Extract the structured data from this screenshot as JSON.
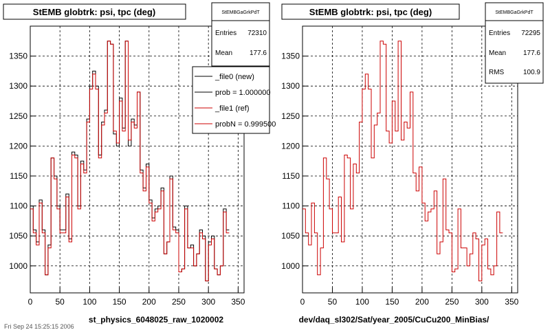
{
  "colors": {
    "data": "#000000",
    "ref": "#cc0000",
    "background": "#ffffff",
    "grid": "#000000"
  },
  "footer_text": "Fri Sep 24 15:25:15 2006",
  "chart_data": [
    {
      "type": "step-histogram",
      "title": "StEMB globtrk: psi, tpc (deg)",
      "xlabel": "st_physics_6048025_raw_1020002",
      "ylabel": "",
      "xlim": [
        0,
        360
      ],
      "ylim": [
        955,
        1400
      ],
      "x_ticks": [
        0,
        50,
        100,
        150,
        200,
        250,
        300,
        350
      ],
      "y_ticks": [
        1000,
        1050,
        1100,
        1150,
        1200,
        1250,
        1300,
        1350
      ],
      "grid": true,
      "bin_width": 5,
      "stats_box": {
        "header": "StEMBGaGrkPdT",
        "rows": [
          {
            "label": "Entries",
            "value": "72310"
          },
          {
            "label": "Mean",
            "value": "177.6"
          }
        ]
      },
      "legend": {
        "position": "top-right",
        "entries": [
          {
            "label": "_file0 (new)",
            "color": "#000000"
          },
          {
            "label": "prob = 1.000000",
            "color": "#000000"
          },
          {
            "label": "_file1 (ref)",
            "color": "#cc0000"
          },
          {
            "label": "probN = 0.999500",
            "color": "#cc0000"
          }
        ]
      },
      "series": [
        {
          "name": "_file0 (new)",
          "color": "#000000",
          "values": [
            1100,
            1060,
            1040,
            1110,
            1060,
            985,
            1035,
            1180,
            1150,
            1100,
            1060,
            1060,
            1120,
            1045,
            1190,
            1185,
            1100,
            1175,
            1160,
            1245,
            1300,
            1325,
            1300,
            1185,
            1240,
            1260,
            1375,
            1370,
            1220,
            1200,
            1280,
            1230,
            1375,
            1200,
            1245,
            1235,
            1290,
            1160,
            1130,
            1170,
            1110,
            1080,
            1095,
            1100,
            1130,
            1020,
            1040,
            1150,
            1065,
            1060,
            990,
            995,
            1100,
            1030,
            1035,
            1000,
            1020,
            1060,
            1050,
            975,
            1040,
            1050,
            995,
            985,
            1000,
            1095,
            1060
          ]
        },
        {
          "name": "_file1 (ref)",
          "color": "#cc0000",
          "values": [
            1095,
            1055,
            1035,
            1105,
            1055,
            985,
            1030,
            1180,
            1145,
            1095,
            1055,
            1055,
            1115,
            1040,
            1185,
            1180,
            1095,
            1170,
            1155,
            1240,
            1295,
            1320,
            1295,
            1180,
            1235,
            1255,
            1375,
            1370,
            1225,
            1205,
            1275,
            1225,
            1375,
            1210,
            1240,
            1230,
            1290,
            1155,
            1125,
            1165,
            1105,
            1075,
            1090,
            1095,
            1125,
            1020,
            1040,
            1145,
            1060,
            1055,
            990,
            995,
            1095,
            1030,
            1030,
            1000,
            1020,
            1055,
            1045,
            975,
            1035,
            1045,
            995,
            985,
            1000,
            1090,
            1055
          ]
        }
      ]
    },
    {
      "type": "step-histogram",
      "title": "StEMB globtrk: psi, tpc (deg)",
      "xlabel": "dev/daq_sl302/Sat/year_2005/CuCu200_MinBias/",
      "ylabel": "",
      "xlim": [
        0,
        360
      ],
      "ylim": [
        955,
        1400
      ],
      "x_ticks": [
        0,
        50,
        100,
        150,
        200,
        250,
        300,
        350
      ],
      "y_ticks": [
        1000,
        1050,
        1100,
        1150,
        1200,
        1250,
        1300,
        1350
      ],
      "grid": true,
      "bin_width": 5,
      "stats_box": {
        "header": "StEMBGaGrkPdT",
        "rows": [
          {
            "label": "Entries",
            "value": "72295"
          },
          {
            "label": "Mean",
            "value": "177.6"
          },
          {
            "label": "RMS",
            "value": "100.9"
          }
        ]
      },
      "legend": null,
      "series": [
        {
          "name": "_file1 (ref)",
          "color": "#cc0000",
          "values": [
            1095,
            1055,
            1035,
            1105,
            1055,
            985,
            1030,
            1180,
            1145,
            1095,
            1055,
            1055,
            1115,
            1040,
            1185,
            1180,
            1095,
            1170,
            1155,
            1240,
            1295,
            1320,
            1295,
            1180,
            1235,
            1255,
            1375,
            1370,
            1225,
            1205,
            1275,
            1225,
            1375,
            1210,
            1240,
            1230,
            1290,
            1155,
            1125,
            1165,
            1105,
            1075,
            1090,
            1095,
            1125,
            1020,
            1040,
            1145,
            1060,
            1055,
            990,
            995,
            1095,
            1030,
            1030,
            1000,
            1020,
            1055,
            1045,
            975,
            1035,
            1045,
            995,
            985,
            1000,
            1090,
            1055
          ]
        }
      ]
    }
  ]
}
